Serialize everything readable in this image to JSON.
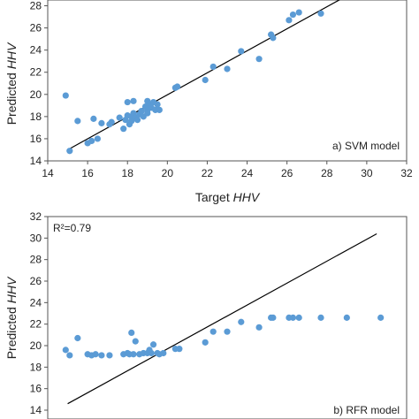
{
  "chart_data": [
    {
      "type": "scatter",
      "panel_label": "a) SVM model",
      "xlabel": "Target ",
      "xlabel_italic": "HHV",
      "ylabel": "Predicted ",
      "ylabel_italic": "HHV",
      "xlim": [
        14,
        32
      ],
      "ylim": [
        14,
        29
      ],
      "xticks": [
        14,
        16,
        18,
        20,
        22,
        24,
        26,
        28,
        30,
        32
      ],
      "yticks": [
        14,
        16,
        18,
        20,
        22,
        24,
        26,
        28
      ],
      "marker_color": "#5b9bd5",
      "line": {
        "x": [
          15.0,
          29.0
        ],
        "y": [
          15.0,
          28.9
        ]
      },
      "points": [
        [
          14.9,
          19.9
        ],
        [
          15.1,
          14.9
        ],
        [
          15.5,
          17.6
        ],
        [
          16.0,
          15.6
        ],
        [
          16.2,
          15.8
        ],
        [
          16.3,
          17.8
        ],
        [
          16.5,
          16.0
        ],
        [
          16.7,
          17.4
        ],
        [
          17.1,
          17.3
        ],
        [
          17.2,
          17.5
        ],
        [
          17.6,
          17.9
        ],
        [
          17.8,
          16.9
        ],
        [
          17.9,
          17.7
        ],
        [
          18.0,
          19.3
        ],
        [
          18.0,
          18.1
        ],
        [
          18.1,
          17.3
        ],
        [
          18.2,
          18.0
        ],
        [
          18.2,
          17.6
        ],
        [
          18.3,
          19.4
        ],
        [
          18.3,
          18.3
        ],
        [
          18.4,
          17.9
        ],
        [
          18.5,
          17.7
        ],
        [
          18.6,
          18.2
        ],
        [
          18.7,
          18.5
        ],
        [
          18.8,
          18.0
        ],
        [
          18.9,
          18.9
        ],
        [
          19.0,
          19.4
        ],
        [
          19.0,
          18.6
        ],
        [
          19.1,
          19.1
        ],
        [
          19.2,
          18.8
        ],
        [
          19.3,
          19.3
        ],
        [
          19.4,
          18.6
        ],
        [
          19.5,
          19.1
        ],
        [
          19.6,
          18.6
        ],
        [
          19.0,
          18.3
        ],
        [
          20.4,
          20.6
        ],
        [
          20.5,
          20.7
        ],
        [
          21.9,
          21.3
        ],
        [
          22.3,
          22.5
        ],
        [
          23.0,
          22.3
        ],
        [
          23.7,
          23.9
        ],
        [
          24.6,
          23.2
        ],
        [
          25.2,
          25.4
        ],
        [
          25.3,
          25.1
        ],
        [
          26.1,
          26.7
        ],
        [
          26.3,
          27.2
        ],
        [
          26.6,
          27.4
        ],
        [
          27.7,
          27.3
        ],
        [
          29.0,
          28.9
        ]
      ]
    },
    {
      "type": "scatter",
      "panel_label": "b) RFR model",
      "annotation": "R²=0.79",
      "ylabel": "Predicted ",
      "ylabel_italic": "HHV",
      "xlim": [
        14,
        32
      ],
      "ylim": [
        14,
        32
      ],
      "yticks": [
        14,
        16,
        18,
        20,
        22,
        24,
        26,
        28,
        30,
        32
      ],
      "marker_color": "#5b9bd5",
      "line": {
        "x": [
          15.0,
          30.5
        ],
        "y": [
          14.6,
          30.4
        ]
      },
      "points": [
        [
          14.9,
          19.6
        ],
        [
          15.1,
          19.1
        ],
        [
          15.5,
          20.7
        ],
        [
          16.0,
          19.2
        ],
        [
          16.2,
          19.1
        ],
        [
          16.4,
          19.2
        ],
        [
          16.7,
          19.1
        ],
        [
          17.1,
          19.1
        ],
        [
          17.8,
          19.2
        ],
        [
          18.0,
          19.3
        ],
        [
          18.1,
          19.2
        ],
        [
          18.2,
          21.2
        ],
        [
          18.3,
          19.2
        ],
        [
          18.4,
          20.4
        ],
        [
          18.6,
          19.2
        ],
        [
          18.8,
          19.3
        ],
        [
          19.0,
          19.3
        ],
        [
          19.1,
          19.6
        ],
        [
          19.2,
          19.3
        ],
        [
          19.3,
          20.1
        ],
        [
          19.5,
          19.3
        ],
        [
          19.6,
          19.2
        ],
        [
          19.8,
          19.3
        ],
        [
          20.4,
          19.7
        ],
        [
          20.6,
          19.7
        ],
        [
          21.9,
          20.3
        ],
        [
          22.3,
          21.3
        ],
        [
          23.0,
          21.3
        ],
        [
          23.7,
          22.2
        ],
        [
          24.6,
          21.7
        ],
        [
          25.2,
          22.6
        ],
        [
          25.3,
          22.6
        ],
        [
          26.1,
          22.6
        ],
        [
          26.3,
          22.6
        ],
        [
          26.6,
          22.6
        ],
        [
          27.7,
          22.6
        ],
        [
          29.0,
          22.6
        ],
        [
          30.7,
          22.6
        ]
      ]
    }
  ]
}
